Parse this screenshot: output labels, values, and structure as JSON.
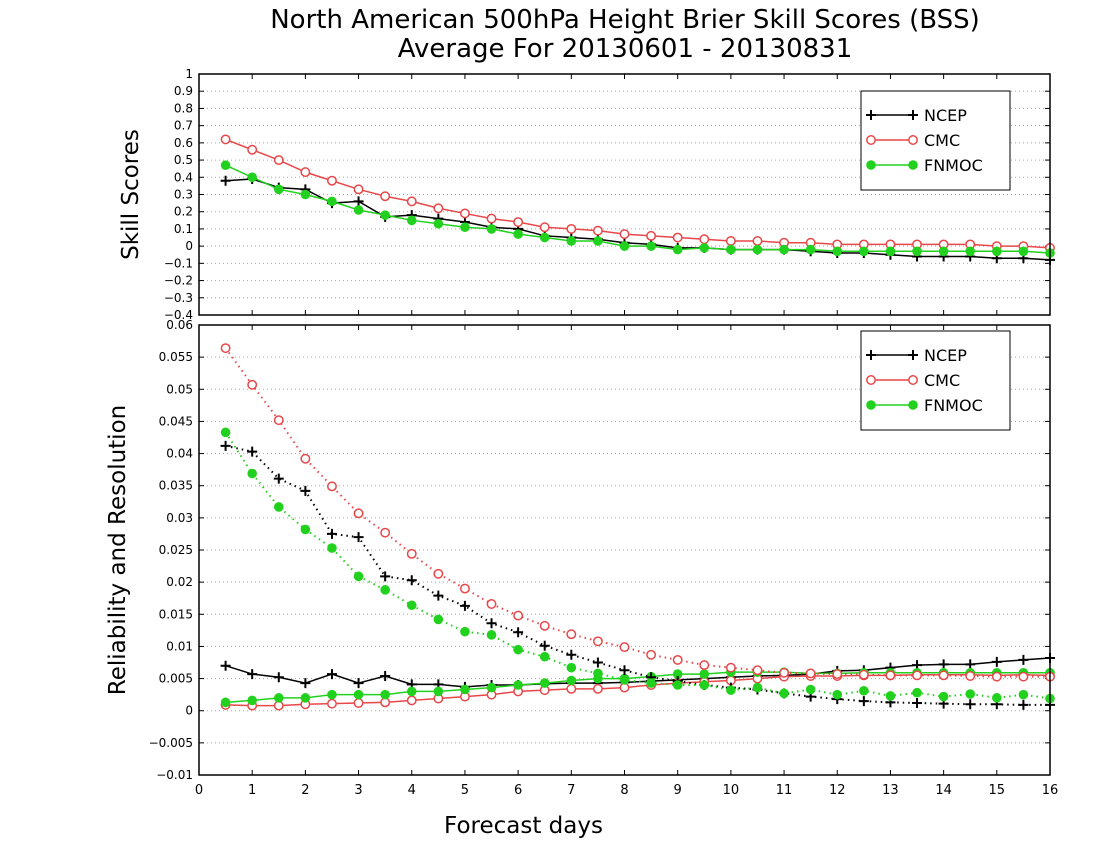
{
  "title": {
    "line1": "North American 500hPa Height Brier Skill Scores (BSS)",
    "line2": "Average For 20130601 - 20130831"
  },
  "colors": {
    "NCEP": "#000000",
    "CMC": "#e8474a",
    "FNMOC": "#22d11e",
    "grid": "#a8a8a8"
  },
  "chart_data": [
    {
      "type": "line",
      "ylabel": "Skill Scores",
      "xlabel": "",
      "xlim": [
        0,
        16
      ],
      "ylim": [
        -0.4,
        1
      ],
      "yticks": [
        -0.4,
        -0.3,
        -0.2,
        -0.1,
        0,
        0.1,
        0.2,
        0.3,
        0.4,
        0.5,
        0.6,
        0.7,
        0.8,
        0.9,
        1
      ],
      "ytick_labels": [
        "−0.4",
        "−0.3",
        "−0.2",
        "−0.1",
        "0",
        "0.1",
        "0.2",
        "0.3",
        "0.4",
        "0.5",
        "0.6",
        "0.7",
        "0.8",
        "0.9",
        "1"
      ],
      "grid": "horizontal dotted",
      "legend_position": "top-right",
      "x": [
        0.5,
        1,
        1.5,
        2,
        2.5,
        3,
        3.5,
        4,
        4.5,
        5,
        5.5,
        6,
        6.5,
        7,
        7.5,
        8,
        8.5,
        9,
        9.5,
        10,
        10.5,
        11,
        11.5,
        12,
        12.5,
        13,
        13.5,
        14,
        14.5,
        15,
        15.5,
        16
      ],
      "series": [
        {
          "name": "NCEP",
          "style": "solid",
          "marker": "plus",
          "values": [
            0.38,
            0.39,
            0.34,
            0.33,
            0.25,
            0.26,
            0.17,
            0.18,
            0.16,
            0.14,
            0.11,
            0.1,
            0.06,
            0.05,
            0.04,
            0.02,
            0.01,
            -0.01,
            -0.01,
            -0.02,
            -0.02,
            -0.02,
            -0.03,
            -0.04,
            -0.04,
            -0.05,
            -0.06,
            -0.06,
            -0.06,
            -0.07,
            -0.07,
            -0.08
          ]
        },
        {
          "name": "CMC",
          "style": "solid",
          "marker": "open-circle",
          "values": [
            0.62,
            0.56,
            0.5,
            0.43,
            0.38,
            0.33,
            0.29,
            0.26,
            0.22,
            0.19,
            0.16,
            0.14,
            0.11,
            0.1,
            0.09,
            0.07,
            0.06,
            0.05,
            0.04,
            0.03,
            0.03,
            0.02,
            0.02,
            0.01,
            0.01,
            0.01,
            0.01,
            0.01,
            0.01,
            0.0,
            0.0,
            -0.01
          ]
        },
        {
          "name": "FNMOC",
          "style": "solid",
          "marker": "filled-circle",
          "values": [
            0.47,
            0.4,
            0.33,
            0.3,
            0.26,
            0.21,
            0.18,
            0.15,
            0.13,
            0.11,
            0.1,
            0.07,
            0.05,
            0.03,
            0.03,
            0.0,
            0.0,
            -0.02,
            -0.01,
            -0.02,
            -0.02,
            -0.02,
            -0.02,
            -0.03,
            -0.03,
            -0.03,
            -0.03,
            -0.03,
            -0.03,
            -0.03,
            -0.03,
            -0.04
          ]
        }
      ]
    },
    {
      "type": "line",
      "ylabel": "Reliability and Resolution",
      "xlabel": "Forecast days",
      "xlim": [
        0,
        16
      ],
      "ylim": [
        -0.01,
        0.06
      ],
      "yticks": [
        -0.01,
        -0.005,
        0,
        0.005,
        0.01,
        0.015,
        0.02,
        0.025,
        0.03,
        0.035,
        0.04,
        0.045,
        0.05,
        0.055,
        0.06
      ],
      "ytick_labels": [
        "−0.01",
        "−0.005",
        "0",
        "0.005",
        "0.01",
        "0.015",
        "0.02",
        "0.025",
        "0.03",
        "0.035",
        "0.04",
        "0.045",
        "0.05",
        "0.055",
        "0.06"
      ],
      "xticks": [
        0,
        1,
        2,
        3,
        4,
        5,
        6,
        7,
        8,
        9,
        10,
        11,
        12,
        13,
        14,
        15,
        16
      ],
      "xtick_labels": [
        "0",
        "1",
        "2",
        "3",
        "4",
        "5",
        "6",
        "7",
        "8",
        "9",
        "10",
        "11",
        "12",
        "13",
        "14",
        "15",
        "16"
      ],
      "grid": "horizontal dotted",
      "legend_position": "top-right",
      "x": [
        0.5,
        1,
        1.5,
        2,
        2.5,
        3,
        3.5,
        4,
        4.5,
        5,
        5.5,
        6,
        6.5,
        7,
        7.5,
        8,
        8.5,
        9,
        9.5,
        10,
        10.5,
        11,
        11.5,
        12,
        12.5,
        13,
        13.5,
        14,
        14.5,
        15,
        15.5,
        16
      ],
      "series": [
        {
          "name": "NCEP",
          "kind": "resolution",
          "style": "solid",
          "marker": "plus",
          "values": [
            0.007,
            0.0057,
            0.0052,
            0.0043,
            0.0057,
            0.0043,
            0.0054,
            0.0041,
            0.0041,
            0.0037,
            0.004,
            0.004,
            0.0042,
            0.0043,
            0.0043,
            0.0044,
            0.0046,
            0.0048,
            0.005,
            0.0052,
            0.0054,
            0.0055,
            0.0057,
            0.0062,
            0.0063,
            0.0067,
            0.0071,
            0.0072,
            0.0072,
            0.0076,
            0.0079,
            0.0082
          ]
        },
        {
          "name": "CMC",
          "kind": "resolution",
          "style": "solid",
          "marker": "open-circle",
          "values": [
            0.0009,
            0.0008,
            0.0008,
            0.001,
            0.0011,
            0.0012,
            0.0013,
            0.0016,
            0.0019,
            0.0022,
            0.0025,
            0.003,
            0.0032,
            0.0034,
            0.0034,
            0.0036,
            0.004,
            0.0043,
            0.0045,
            0.0047,
            0.005,
            0.0053,
            0.0054,
            0.0054,
            0.0055,
            0.0055,
            0.0056,
            0.0056,
            0.0056,
            0.0055,
            0.0056,
            0.0055
          ]
        },
        {
          "name": "FNMOC",
          "kind": "resolution",
          "style": "solid",
          "marker": "filled-circle",
          "values": [
            0.0013,
            0.0016,
            0.002,
            0.002,
            0.0025,
            0.0025,
            0.0025,
            0.003,
            0.003,
            0.0033,
            0.0036,
            0.004,
            0.0043,
            0.0047,
            0.005,
            0.005,
            0.0053,
            0.0057,
            0.0057,
            0.006,
            0.006,
            0.006,
            0.0058,
            0.0058,
            0.0059,
            0.0059,
            0.0059,
            0.0059,
            0.0059,
            0.0059,
            0.0059,
            0.0059
          ]
        },
        {
          "name": "NCEP",
          "kind": "reliability",
          "style": "dotted",
          "marker": "plus",
          "values": [
            0.0412,
            0.0403,
            0.0361,
            0.0342,
            0.0275,
            0.027,
            0.0209,
            0.0203,
            0.0179,
            0.0163,
            0.0136,
            0.0122,
            0.0101,
            0.0087,
            0.0075,
            0.0063,
            0.0052,
            0.0046,
            0.004,
            0.0036,
            0.0033,
            0.0027,
            0.0022,
            0.0018,
            0.0015,
            0.0013,
            0.0012,
            0.0011,
            0.001,
            0.001,
            0.0009,
            0.0009
          ]
        },
        {
          "name": "CMC",
          "kind": "reliability",
          "style": "dotted",
          "marker": "open-circle",
          "values": [
            0.0564,
            0.0507,
            0.0452,
            0.0392,
            0.0349,
            0.0307,
            0.0277,
            0.0244,
            0.0213,
            0.019,
            0.0166,
            0.0148,
            0.0132,
            0.0119,
            0.0108,
            0.0099,
            0.0087,
            0.0079,
            0.0071,
            0.0067,
            0.0063,
            0.0059,
            0.0058,
            0.0057,
            0.0056,
            0.0055,
            0.0055,
            0.0055,
            0.0054,
            0.0053,
            0.0053,
            0.0053
          ]
        },
        {
          "name": "FNMOC",
          "kind": "reliability",
          "style": "dotted",
          "marker": "filled-circle",
          "values": [
            0.0433,
            0.0369,
            0.0317,
            0.0282,
            0.0253,
            0.0209,
            0.0188,
            0.0164,
            0.0142,
            0.0123,
            0.0118,
            0.0095,
            0.0084,
            0.0067,
            0.0058,
            0.0048,
            0.0043,
            0.004,
            0.004,
            0.0032,
            0.0036,
            0.0027,
            0.0033,
            0.0025,
            0.0031,
            0.0023,
            0.0028,
            0.0022,
            0.0026,
            0.002,
            0.0025,
            0.0019
          ]
        }
      ]
    }
  ]
}
